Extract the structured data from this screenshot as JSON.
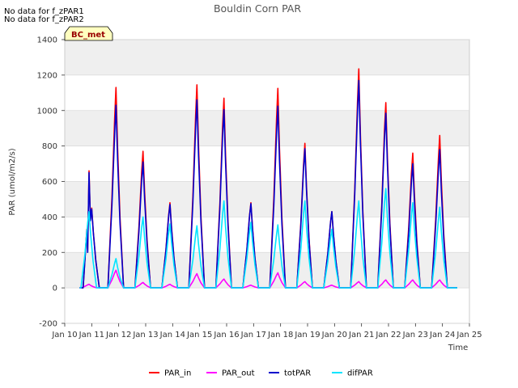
{
  "notes": [
    "No data for f_zPAR1",
    "No data for f_zPAR2"
  ],
  "chart_data": {
    "type": "line",
    "title": "Bouldin Corn PAR",
    "xlabel": "Time",
    "ylabel": "PAR (umol/m2/s)",
    "site_tag": "BC_met",
    "xlim": [
      10,
      25
    ],
    "ylim": [
      -200,
      1400
    ],
    "yticks": [
      -200,
      0,
      200,
      400,
      600,
      800,
      1000,
      1200,
      1400
    ],
    "xticks": [
      10,
      11,
      12,
      13,
      14,
      15,
      16,
      17,
      18,
      19,
      20,
      21,
      22,
      23,
      24,
      25
    ],
    "xtick_labels": [
      "Jan 10",
      "Jan 11",
      "Jan 12",
      "Jan 13",
      "Jan 14",
      "Jan 15",
      "Jan 16",
      "Jan 17",
      "Jan 18",
      "Jan 19",
      "Jan 20",
      "Jan 21",
      "Jan 22",
      "Jan 23",
      "Jan 24",
      "Jan 25"
    ],
    "grid": true,
    "legend_position": "bottom",
    "series_order": [
      "PAR_in",
      "PAR_out",
      "totPAR",
      "difPAR"
    ],
    "series": [
      {
        "name": "PAR_in",
        "color": "#ff0000",
        "daily_peaks": [
          [
            10.9,
            660
          ],
          [
            11.0,
            450
          ],
          [
            11.9,
            1130
          ],
          [
            12.9,
            770
          ],
          [
            13.9,
            480
          ],
          [
            14.9,
            1145
          ],
          [
            15.9,
            1070
          ],
          [
            16.9,
            480
          ],
          [
            17.9,
            1125
          ],
          [
            18.9,
            815
          ],
          [
            19.9,
            430
          ],
          [
            20.9,
            1235
          ],
          [
            21.9,
            1045
          ],
          [
            22.9,
            760
          ],
          [
            23.9,
            860
          ]
        ]
      },
      {
        "name": "PAR_out",
        "color": "#ff00ff",
        "daily_peaks": [
          [
            10.9,
            20
          ],
          [
            11.9,
            100
          ],
          [
            12.9,
            30
          ],
          [
            13.9,
            20
          ],
          [
            14.9,
            80
          ],
          [
            15.9,
            50
          ],
          [
            16.9,
            15
          ],
          [
            17.9,
            85
          ],
          [
            18.9,
            35
          ],
          [
            19.9,
            15
          ],
          [
            20.9,
            35
          ],
          [
            21.9,
            45
          ],
          [
            22.9,
            45
          ],
          [
            23.9,
            45
          ]
        ]
      },
      {
        "name": "totPAR",
        "color": "#0000cc",
        "daily_peaks": [
          [
            10.9,
            650
          ],
          [
            11.0,
            445
          ],
          [
            11.9,
            1030
          ],
          [
            12.9,
            710
          ],
          [
            13.9,
            470
          ],
          [
            14.9,
            1060
          ],
          [
            15.9,
            1005
          ],
          [
            16.9,
            475
          ],
          [
            17.9,
            1025
          ],
          [
            18.9,
            785
          ],
          [
            19.9,
            430
          ],
          [
            20.9,
            1170
          ],
          [
            21.9,
            985
          ],
          [
            22.9,
            700
          ],
          [
            23.9,
            780
          ]
        ]
      },
      {
        "name": "difPAR",
        "color": "#00e5ff",
        "daily_peaks": [
          [
            10.9,
            430
          ],
          [
            11.9,
            165
          ],
          [
            12.9,
            400
          ],
          [
            13.9,
            360
          ],
          [
            14.9,
            350
          ],
          [
            15.9,
            490
          ],
          [
            16.9,
            370
          ],
          [
            17.9,
            355
          ],
          [
            18.9,
            490
          ],
          [
            19.9,
            330
          ],
          [
            20.9,
            490
          ],
          [
            21.9,
            560
          ],
          [
            22.9,
            480
          ],
          [
            23.9,
            455
          ]
        ]
      }
    ]
  }
}
